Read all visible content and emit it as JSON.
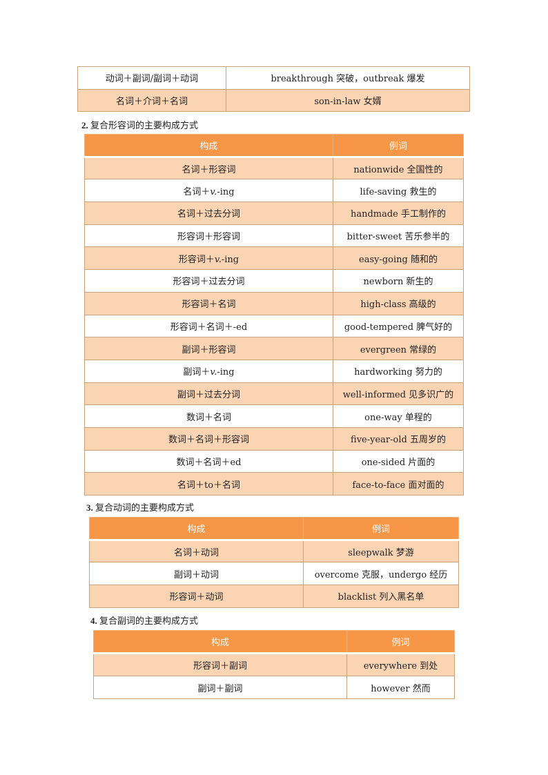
{
  "tables": [
    {
      "header": null,
      "rows": [
        [
          "动词＋副词/副词＋动词",
          "breakthrough 突破，outbreak 爆发"
        ],
        [
          "名词＋介词＋名词",
          "son-in-law 女婿"
        ]
      ],
      "first_alt": false
    },
    {
      "heading_num": "2.",
      "heading": "复合形容词的主要构成方式",
      "header": [
        "构成",
        "例词"
      ],
      "rows": [
        [
          "名词＋形容词",
          "nationwide 全国性的"
        ],
        [
          "名词＋v.-ing",
          "life-saving 救生的"
        ],
        [
          "名词＋过去分词",
          "handmade 手工制作的"
        ],
        [
          "形容词＋形容词",
          "bitter-sweet 苦乐参半的"
        ],
        [
          "形容词＋v.-ing",
          "easy-going 随和的"
        ],
        [
          "形容词＋过去分词",
          "newborn 新生的"
        ],
        [
          "形容词＋名词",
          "high-class 高级的"
        ],
        [
          "形容词＋名词＋-ed",
          "good-tempered 脾气好的"
        ],
        [
          "副词＋形容词",
          "evergreen 常绿的"
        ],
        [
          "副词＋v.-ing",
          "hardworking 努力的"
        ],
        [
          "副词＋过去分词",
          "well-informed 见多识广的"
        ],
        [
          "数词＋名词",
          "one-way 单程的"
        ],
        [
          "数词＋名词＋形容词",
          "five-year-old 五周岁的"
        ],
        [
          "数词＋名词＋ed",
          "one-sided 片面的"
        ],
        [
          "名词＋to＋名词",
          "face-to-face 面对面的"
        ]
      ],
      "first_alt": true
    },
    {
      "heading_num": "3.",
      "heading": "复合动词的主要构成方式",
      "header": [
        "构成",
        "例词"
      ],
      "rows": [
        [
          "名词＋动词",
          "sleepwalk 梦游"
        ],
        [
          "副词＋动词",
          "overcome 克服，undergo 经历"
        ],
        [
          "形容词＋动词",
          "blacklist 列入黑名单"
        ]
      ],
      "first_alt": true
    },
    {
      "heading_num": "4.",
      "heading": "复合副词的主要构成方式",
      "header": [
        "构成",
        "例词"
      ],
      "rows": [
        [
          "形容词＋副词",
          "everywhere 到处"
        ],
        [
          "副词＋副词",
          "however 然而"
        ]
      ],
      "first_alt": true
    }
  ],
  "colors": {
    "header": "#f79646",
    "alt_row": "#fbd4b4",
    "border": "#c8a27a"
  }
}
